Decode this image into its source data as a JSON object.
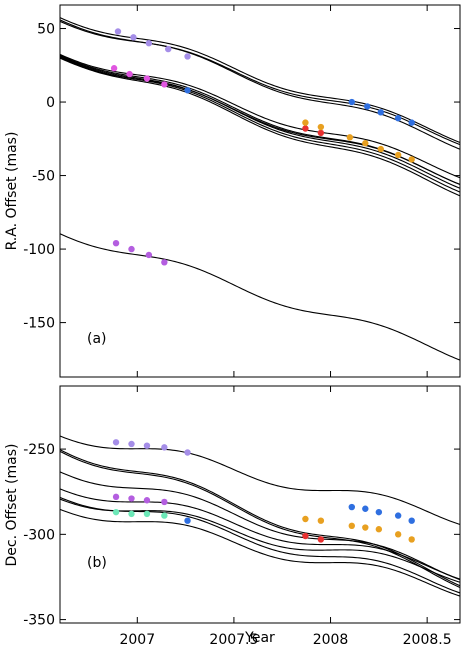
{
  "chart_data": [
    {
      "type": "line",
      "panel_label": "(a)",
      "xlabel": "",
      "ylabel": "R.A. Offset  (mas)",
      "xlim": [
        2006.6,
        2008.67
      ],
      "ylim": [
        -187,
        66
      ],
      "x_ticks": [
        2007,
        2007.5,
        2008,
        2008.5
      ],
      "x_tick_labels": [
        "",
        "",
        "",
        ""
      ],
      "y_ticks": [
        50,
        0,
        -50,
        -100,
        -150
      ],
      "y_tick_labels": [
        "50",
        "0",
        "-50",
        "-100",
        "-150"
      ],
      "grid": false,
      "curves": [
        {
          "start": 59.5,
          "slope": -40.5,
          "amp": 3.6
        },
        {
          "start": 58.0,
          "slope": -42.0,
          "amp": 3.6
        },
        {
          "start": 57.0,
          "slope": -40.0,
          "amp": 3.6
        },
        {
          "start": 34.5,
          "slope": -40.0,
          "amp": 3.6
        },
        {
          "start": 34.0,
          "slope": -42.0,
          "amp": 3.6
        },
        {
          "start": 33.5,
          "slope": -43.0,
          "amp": 3.6
        },
        {
          "start": 33.0,
          "slope": -44.0,
          "amp": 3.6
        },
        {
          "start": 32.5,
          "slope": -45.0,
          "amp": 3.6
        },
        {
          "start": 32.0,
          "slope": -41.0,
          "amp": 3.6
        },
        {
          "start": -87.5,
          "slope": -41.0,
          "amp": 3.6
        }
      ],
      "series": [
        {
          "color": "#a58ee8",
          "x": [
            2006.9,
            2006.98,
            2007.06,
            2007.16,
            2007.26
          ],
          "y": [
            48,
            44,
            40,
            36,
            31
          ]
        },
        {
          "color": "#e056e0",
          "x": [
            2006.88,
            2006.96,
            2007.05,
            2007.14
          ],
          "y": [
            23,
            19,
            16,
            12
          ]
        },
        {
          "color": "#2f6fe0",
          "x": [
            2007.26
          ],
          "y": [
            8
          ]
        },
        {
          "color": "#e83030",
          "x": [
            2007.87,
            2007.95
          ],
          "y": [
            -18,
            -21
          ]
        },
        {
          "color": "#e8a020",
          "x": [
            2007.87,
            2007.95,
            2008.1,
            2008.18,
            2008.26,
            2008.35,
            2008.42
          ],
          "y": [
            -14,
            -17,
            -24,
            -28,
            -32,
            -36,
            -39
          ]
        },
        {
          "color": "#2f6fe0",
          "x": [
            2008.11,
            2008.19,
            2008.26,
            2008.35,
            2008.42
          ],
          "y": [
            0,
            -3,
            -7,
            -11,
            -14
          ]
        },
        {
          "color": "#b45ee0",
          "x": [
            2006.89,
            2006.97,
            2007.06,
            2007.14
          ],
          "y": [
            -96,
            -100,
            -104,
            -109
          ]
        }
      ]
    },
    {
      "type": "line",
      "panel_label": "(b)",
      "xlabel": "Year",
      "ylabel": "Dec. Offset  (mas)",
      "xlim": [
        2006.6,
        2008.67
      ],
      "ylim": [
        -352,
        -213
      ],
      "x_ticks": [
        2007,
        2007.5,
        2008,
        2008.5
      ],
      "x_tick_labels": [
        "2007",
        "2007.5",
        "2008",
        "2008.5"
      ],
      "y_ticks": [
        -250,
        -300,
        -350
      ],
      "y_tick_labels": [
        "-250",
        "-300",
        "-350"
      ],
      "grid": false,
      "curves": [
        {
          "start": -240.0,
          "slope": -24.5,
          "amp": 4.0
        },
        {
          "start": -248.0,
          "slope": -38.0,
          "amp": 4.0
        },
        {
          "start": -249.0,
          "slope": -38.0,
          "amp": 4.0
        },
        {
          "start": -261.0,
          "slope": -30.0,
          "amp": 4.0
        },
        {
          "start": -271.0,
          "slope": -25.0,
          "amp": 4.0
        },
        {
          "start": -276.0,
          "slope": -26.5,
          "amp": 4.0
        },
        {
          "start": -277.0,
          "slope": -23.0,
          "amp": 4.0
        },
        {
          "start": -283.0,
          "slope": -24.0,
          "amp": 4.0
        }
      ],
      "series": [
        {
          "color": "#a58ee8",
          "x": [
            2006.89,
            2006.97,
            2007.05,
            2007.14,
            2007.26
          ],
          "y": [
            -246,
            -247,
            -248,
            -249,
            -252
          ]
        },
        {
          "color": "#b45ee0",
          "x": [
            2006.89,
            2006.97,
            2007.05,
            2007.14
          ],
          "y": [
            -278,
            -279,
            -280,
            -281
          ]
        },
        {
          "color": "#6de8b8",
          "x": [
            2006.89,
            2006.97,
            2007.05,
            2007.14
          ],
          "y": [
            -287,
            -288,
            -288,
            -289
          ]
        },
        {
          "color": "#2f6fe0",
          "x": [
            2007.26
          ],
          "y": [
            -292
          ]
        },
        {
          "color": "#2f6fe0",
          "x": [
            2008.11,
            2008.18,
            2008.25,
            2008.35,
            2008.42
          ],
          "y": [
            -284,
            -285,
            -287,
            -289,
            -292
          ]
        },
        {
          "color": "#e8a020",
          "x": [
            2007.87,
            2007.95,
            2008.11,
            2008.18,
            2008.25,
            2008.35,
            2008.42
          ],
          "y": [
            -291,
            -292,
            -295,
            -296,
            -297,
            -300,
            -303
          ]
        },
        {
          "color": "#e83030",
          "x": [
            2007.87,
            2007.95
          ],
          "y": [
            -301,
            -303
          ]
        }
      ]
    }
  ]
}
